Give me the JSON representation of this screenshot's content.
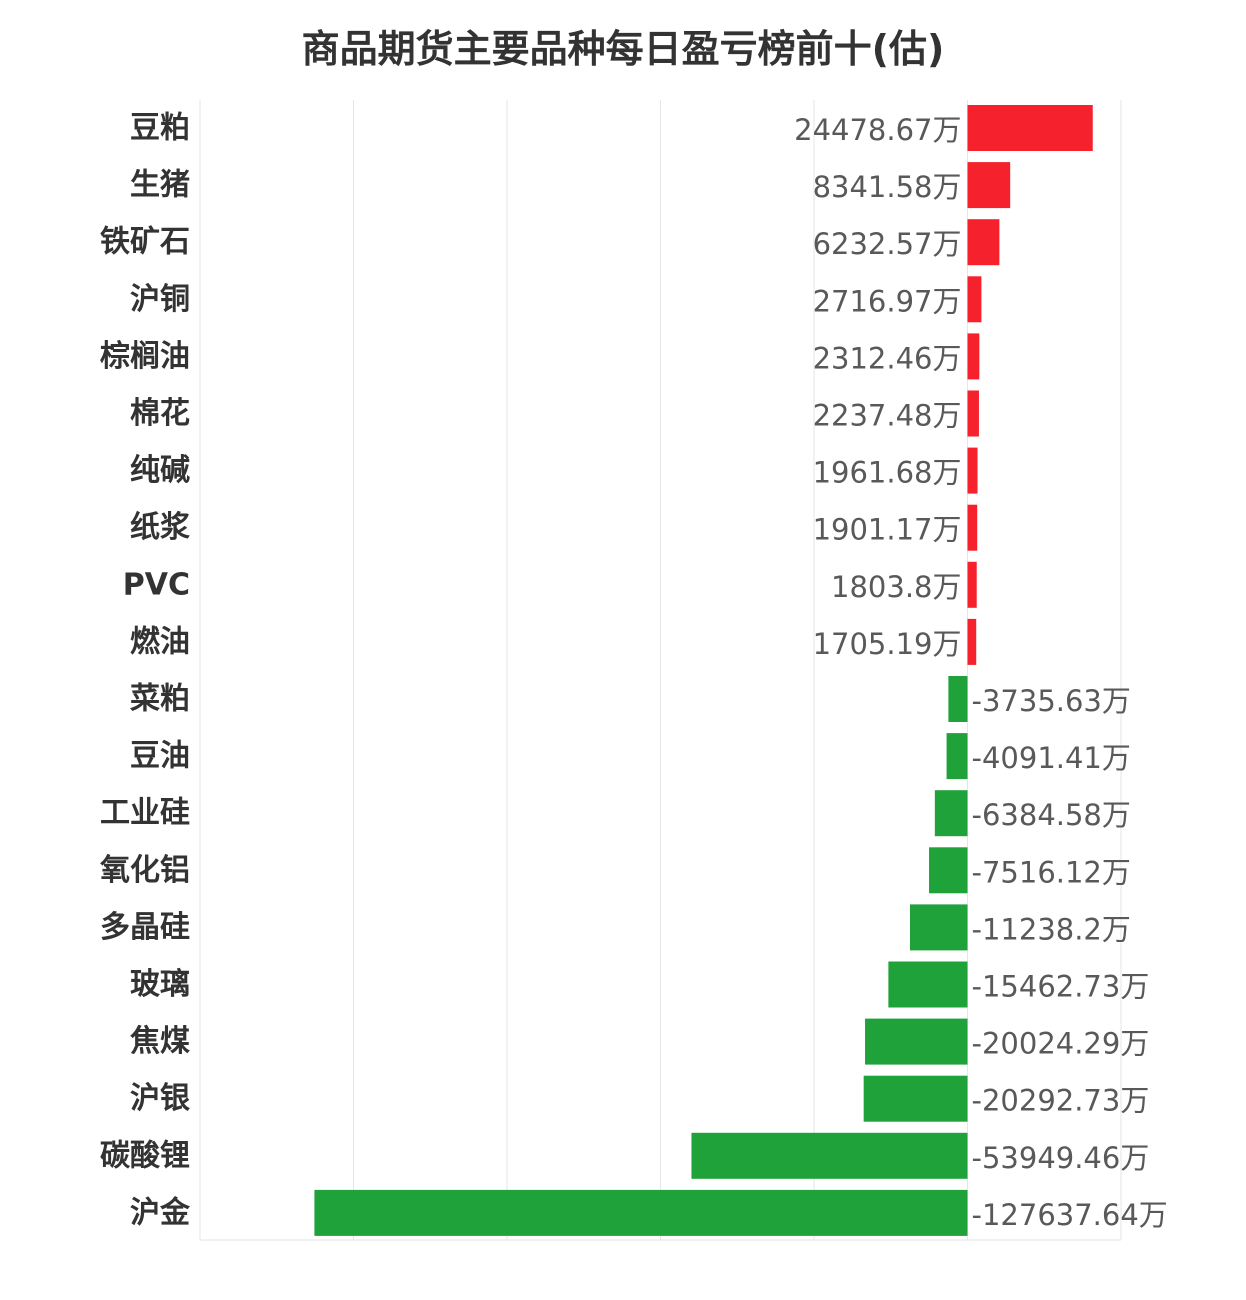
{
  "chart_data": {
    "type": "bar",
    "orientation": "horizontal",
    "title": "商品期货主要品种每日盈亏榜前十(估)",
    "unit_suffix": "万",
    "categories": [
      "豆粕",
      "生猪",
      "铁矿石",
      "沪铜",
      "棕榈油",
      "棉花",
      "纯碱",
      "纸浆",
      "PVC",
      "燃油",
      "菜粕",
      "豆油",
      "工业硅",
      "氧化铝",
      "多晶硅",
      "玻璃",
      "焦煤",
      "沪银",
      "碳酸锂",
      "沪金"
    ],
    "values": [
      24478.67,
      8341.58,
      6232.57,
      2716.97,
      2312.46,
      2237.48,
      1961.68,
      1901.17,
      1803.8,
      1705.19,
      -3735.63,
      -4091.41,
      -6384.58,
      -7516.12,
      -11238.2,
      -15462.73,
      -20024.29,
      -20292.73,
      -53949.46,
      -127637.64
    ],
    "value_labels": [
      "24478.67万",
      "8341.58万",
      "6232.57万",
      "2716.97万",
      "2312.46万",
      "2237.48万",
      "1961.68万",
      "1901.17万",
      "1803.8万",
      "1705.19万",
      "-3735.63万",
      "-4091.41万",
      "-6384.58万",
      "-7516.12万",
      "-11238.2万",
      "-15462.73万",
      "-20024.29万",
      "-20292.73万",
      "-53949.46万",
      "-127637.64万"
    ],
    "xlim": [
      -150000,
      30000
    ],
    "gridlines": [
      -150000,
      -120000,
      -90000,
      -60000,
      -30000,
      0,
      30000
    ],
    "grid": true,
    "legend": "none",
    "colors": {
      "positive": "#f5222d",
      "negative": "#1fa23a",
      "grid": "#e6e6e6"
    }
  }
}
